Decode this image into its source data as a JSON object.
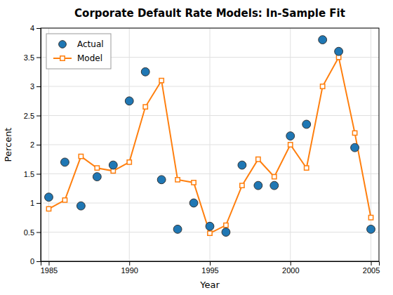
{
  "chart_data": {
    "type": "line",
    "title": "Corporate Default Rate Models: In-Sample Fit",
    "xlabel": "Year",
    "ylabel": "Percent",
    "x": [
      1985,
      1986,
      1987,
      1988,
      1989,
      1990,
      1991,
      1992,
      1993,
      1994,
      1995,
      1996,
      1997,
      1998,
      1999,
      2000,
      2001,
      2002,
      2003,
      2004,
      2005
    ],
    "series": [
      {
        "name": "Actual",
        "type": "scatter",
        "marker": "circle",
        "values": [
          1.1,
          1.7,
          0.95,
          1.45,
          1.65,
          2.75,
          3.25,
          1.4,
          0.55,
          1.0,
          0.6,
          0.5,
          1.65,
          1.3,
          1.3,
          2.15,
          2.35,
          3.8,
          3.6,
          1.95,
          0.55
        ]
      },
      {
        "name": "Model",
        "type": "line",
        "marker": "square",
        "values": [
          0.9,
          1.05,
          1.8,
          1.6,
          1.55,
          1.7,
          2.65,
          3.1,
          1.4,
          1.35,
          0.48,
          0.62,
          1.3,
          1.75,
          1.45,
          2.0,
          1.6,
          3.0,
          3.5,
          2.2,
          0.75
        ]
      }
    ],
    "xlim": [
      1984.5,
      2005.5
    ],
    "xticks": [
      1985,
      1990,
      1995,
      2000,
      2005
    ],
    "ylim": [
      0,
      4
    ],
    "yticks": [
      0,
      0.5,
      1,
      1.5,
      2,
      2.5,
      3,
      3.5,
      4
    ],
    "grid": true,
    "legend": "upper left"
  }
}
